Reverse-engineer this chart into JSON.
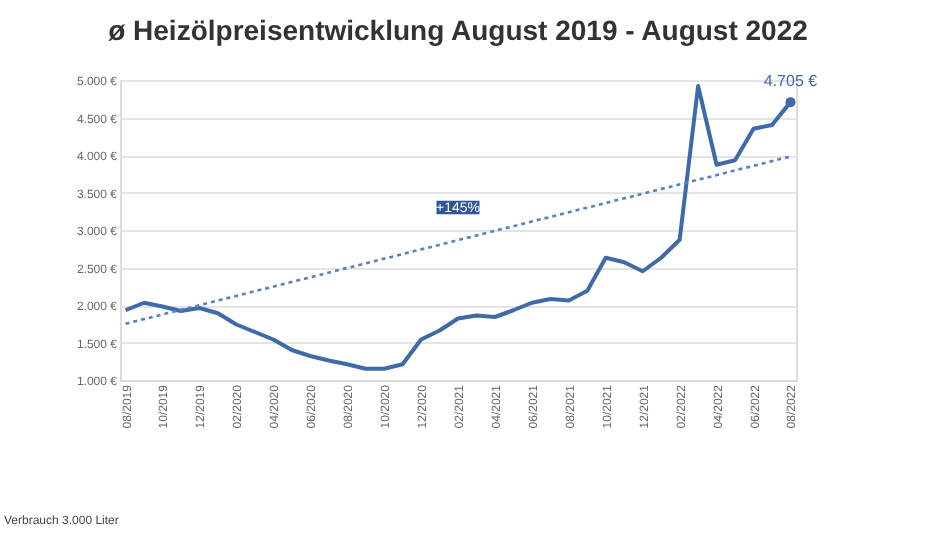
{
  "chart_data": {
    "type": "line",
    "title": "ø Heizölpreisentwicklung August 2019 - August 2022",
    "categories": [
      "08/2019",
      null,
      "10/2019",
      null,
      "12/2019",
      null,
      "02/2020",
      null,
      "04/2020",
      null,
      "06/2020",
      null,
      "08/2020",
      null,
      "10/2020",
      null,
      "12/2020",
      null,
      "02/2021",
      null,
      "04/2021",
      null,
      "06/2021",
      null,
      "08/2021",
      null,
      "10/2021",
      null,
      "12/2021",
      null,
      "02/2022",
      null,
      "04/2022",
      null,
      "06/2022",
      null,
      "08/2022"
    ],
    "series": [
      {
        "color": "#3f6aaa",
        "line_style": "solid",
        "values": [
          1930,
          2030,
          1980,
          1920,
          1960,
          1890,
          1740,
          1640,
          1540,
          1400,
          1320,
          1260,
          1210,
          1150,
          1150,
          1210,
          1540,
          1660,
          1820,
          1860,
          1840,
          1930,
          2030,
          2080,
          2060,
          2190,
          2630,
          2570,
          2450,
          2630,
          2870,
          4920,
          3870,
          3930,
          4350,
          4400,
          4705
        ]
      },
      {
        "type": "line",
        "color": "#5b7fbf",
        "line_style": "dotted",
        "x": [
          "08/2019",
          "08/2022"
        ],
        "values": [
          1750,
          3980
        ]
      }
    ],
    "ylim": [
      1000,
      5000
    ],
    "yticks": [
      {
        "value": 1000,
        "label": "1.000 €"
      },
      {
        "value": 1500,
        "label": "1.500 €"
      },
      {
        "value": 2000,
        "label": "2.000 €"
      },
      {
        "value": 2500,
        "label": "2.500 €"
      },
      {
        "value": 3000,
        "label": "3.000 €"
      },
      {
        "value": 3500,
        "label": "3.500 €"
      },
      {
        "value": 4000,
        "label": "4.000 €"
      },
      {
        "value": 4500,
        "label": "4.500 €"
      },
      {
        "value": 5000,
        "label": "5.000 €"
      }
    ],
    "grid": "y",
    "annotations": [
      {
        "text": "4.705 €",
        "x": "08/2022",
        "y": 4705
      },
      {
        "text": "+145%",
        "x": "02/2021",
        "y": 3300
      },
      "Verbrauch 3.000 Liter"
    ]
  }
}
